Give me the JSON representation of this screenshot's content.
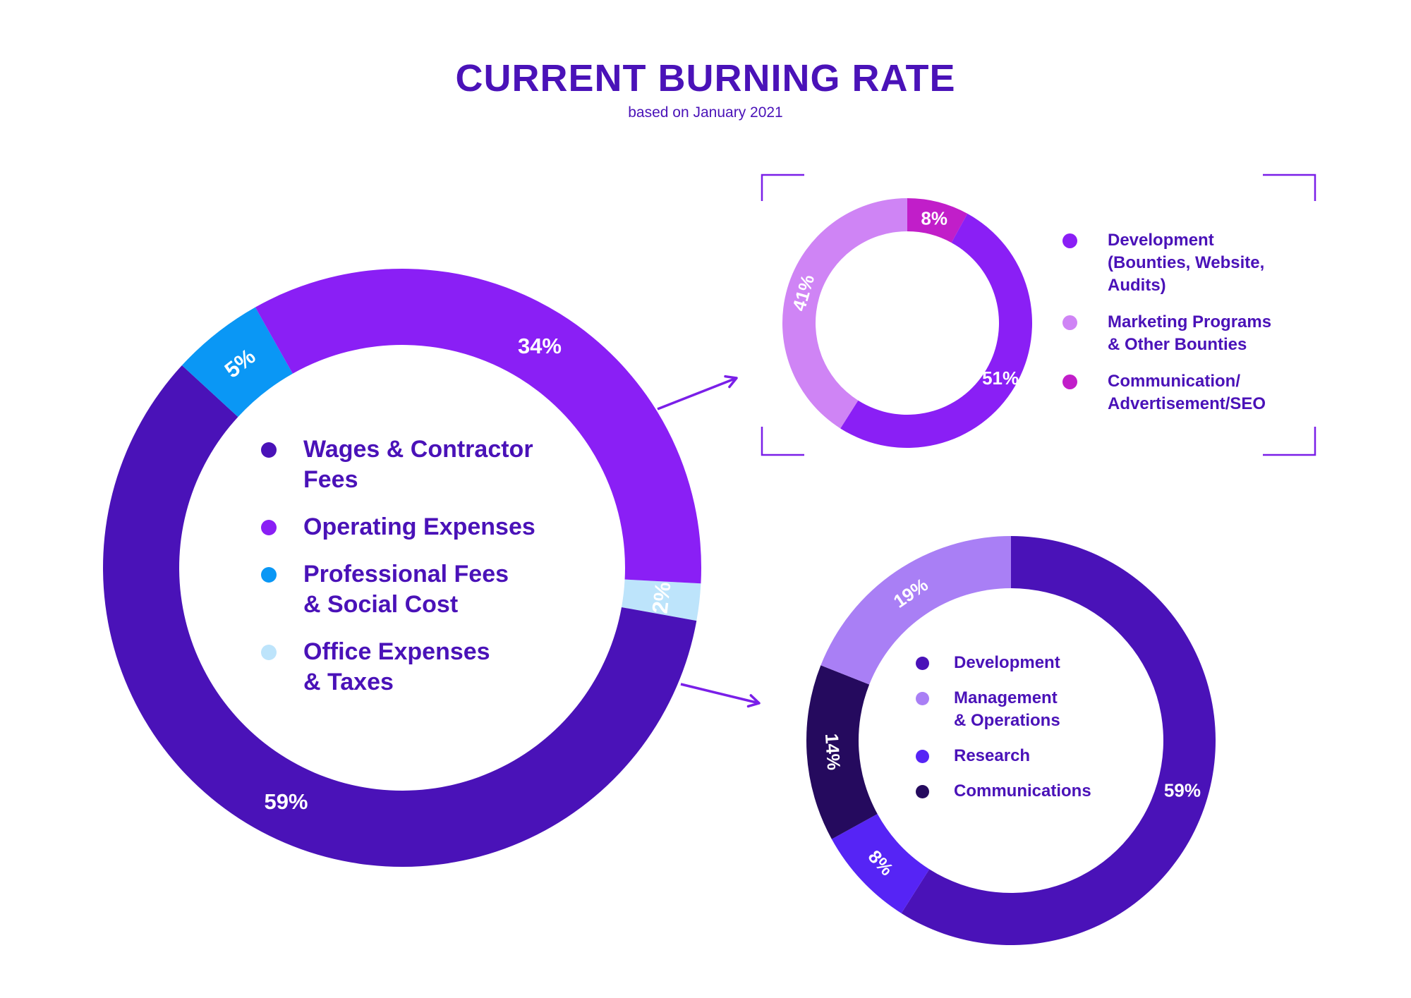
{
  "title": "CURRENT BURNING RATE",
  "subtitle": "based on January 2021",
  "chart_data": [
    {
      "type": "pie",
      "variant": "donut",
      "title": "",
      "categories": [
        "Wages & Contractor Fees",
        "Operating Expenses",
        "Professional Fees & Social Cost",
        "Office Expenses & Taxes"
      ],
      "values": [
        59,
        34,
        5,
        2
      ],
      "data_labels": [
        "59%",
        "34%",
        "5%",
        "2%"
      ],
      "colors": [
        "#4a12b8",
        "#8a1ff5",
        "#0a97f5",
        "#bde4fb"
      ],
      "legend_labels": [
        "Wages & Contractor\nFees",
        "Operating Expenses",
        "Professional Fees\n& Social Cost",
        "Office Expenses\n& Taxes"
      ],
      "legend_position": "center"
    },
    {
      "type": "pie",
      "variant": "donut",
      "title": "",
      "categories": [
        "Development (Bounties, Website, Audits)",
        "Marketing Programs & Other Bounties",
        "Communication/ Advertisement/SEO"
      ],
      "values": [
        51,
        41,
        8
      ],
      "data_labels": [
        "51%",
        "41%",
        "8%"
      ],
      "colors": [
        "#8a1ff5",
        "#cf84f5",
        "#c11ec9"
      ],
      "legend_labels": [
        "Development\n(Bounties, Website,\nAudits)",
        "Marketing Programs\n& Other Bounties",
        "Communication/\nAdvertisement/SEO"
      ],
      "legend_position": "right",
      "breakdown_of": "Operating Expenses"
    },
    {
      "type": "pie",
      "variant": "donut",
      "title": "",
      "categories": [
        "Development",
        "Management & Operations",
        "Research",
        "Communications"
      ],
      "values": [
        59,
        19,
        8,
        14
      ],
      "data_labels": [
        "59%",
        "19%",
        "8%",
        "14%"
      ],
      "colors": [
        "#4a12b8",
        "#a97ff5",
        "#5624f5",
        "#250a5e"
      ],
      "legend_labels": [
        "Development",
        "Management\n& Operations",
        "Research",
        "Communications"
      ],
      "legend_position": "center",
      "breakdown_of": "Wages & Contractor Fees"
    }
  ]
}
